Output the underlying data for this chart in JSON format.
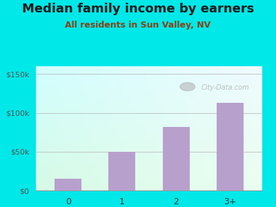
{
  "title": "Median family income by earners",
  "subtitle": "All residents in Sun Valley, NV",
  "categories": [
    "0",
    "1",
    "2",
    "3+"
  ],
  "values": [
    15000,
    50000,
    82000,
    113000
  ],
  "bar_color": "#b8a0cc",
  "ylim": [
    0,
    160000
  ],
  "yticks": [
    0,
    50000,
    100000,
    150000
  ],
  "ytick_labels": [
    "$0",
    "$50k",
    "$100k",
    "$150k"
  ],
  "outer_bg": "#00e8e8",
  "title_color": "#1a1a1a",
  "subtitle_color": "#8b4010",
  "title_fontsize": 13,
  "subtitle_fontsize": 9,
  "watermark": "City-Data.com",
  "plot_bg_topleft": [
    0.85,
    1.0,
    0.97
  ],
  "plot_bg_bottomright": [
    0.88,
    0.98,
    0.88
  ]
}
